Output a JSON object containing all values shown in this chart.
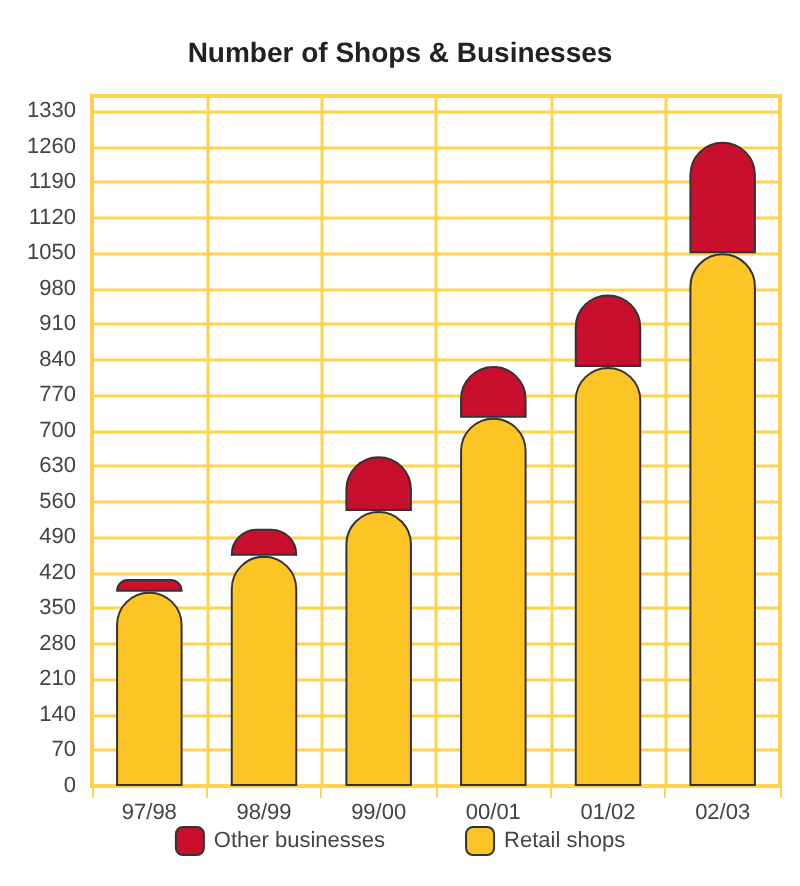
{
  "chart_data": {
    "type": "bar",
    "title": "Number of Shops & Businesses",
    "categories": [
      "97/98",
      "98/99",
      "99/00",
      "00/01",
      "01/02",
      "02/03"
    ],
    "stacked": true,
    "series": [
      {
        "name": "Retail shops",
        "color": "#fdc426",
        "values": [
          383,
          454,
          542,
          726,
          826,
          1050
        ]
      },
      {
        "name": "Other businesses",
        "color": "#c8102e",
        "values": [
          25,
          53,
          108,
          102,
          143,
          220
        ]
      }
    ],
    "ylim": [
      0,
      1360
    ],
    "yticks": [
      0,
      70,
      140,
      210,
      280,
      350,
      420,
      490,
      560,
      630,
      700,
      770,
      840,
      910,
      980,
      1050,
      1120,
      1190,
      1260,
      1330
    ],
    "grid": true,
    "legend": "bottom"
  }
}
